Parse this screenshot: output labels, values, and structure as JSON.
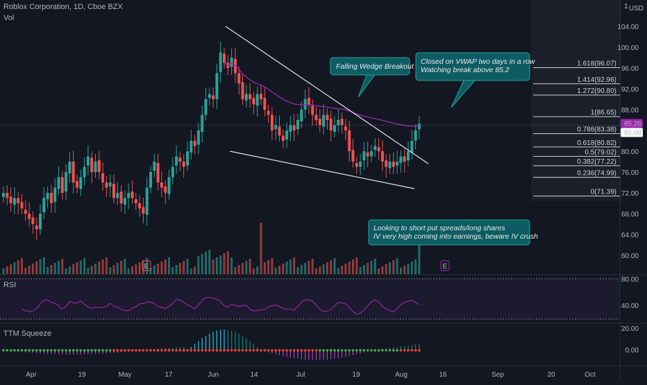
{
  "header": {
    "symbol": "Roblox Corporation, 1D, Cboe BZX",
    "volume_label": "Vol",
    "currency": "USD",
    "currency_menu": "1"
  },
  "price_axis": {
    "ticks": [
      "104.00",
      "100.00",
      "96.00",
      "92.00",
      "88.00",
      "84.00",
      "80.00",
      "76.00",
      "72.00",
      "68.00",
      "64.00",
      "60.00"
    ],
    "badge_last": "85.26",
    "badge_prev": "85.08"
  },
  "rsi": {
    "label": "RSI",
    "ticks": [
      "80.00",
      "40.00"
    ]
  },
  "ttm": {
    "label": "TTM Squeeze",
    "ticks": [
      "20.00",
      "0.00"
    ]
  },
  "time_axis": [
    "Apr",
    "19",
    "May",
    "17",
    "Jun",
    "14",
    "Jul",
    "19",
    "Aug",
    "16",
    "Sep",
    "20",
    "Oct"
  ],
  "earnings_markers": [
    "E",
    "E"
  ],
  "annotations": {
    "wedge": "Falling Wedge Breakout",
    "vwap_line1": "Closed on VWAP two days in a row",
    "vwap_line2": "Watching break above 85.2",
    "plan_line1": "Looking to short put spreads/long shares",
    "plan_line2": "IV very high coming into earnings, beware IV crush"
  },
  "fib_levels": [
    {
      "ratio": "1.618",
      "price": "96.07",
      "label": "1.618(96.07)"
    },
    {
      "ratio": "1.414",
      "price": "92.96",
      "label": "1.414(92.96)"
    },
    {
      "ratio": "1.272",
      "price": "90.80",
      "label": "1.272(90.80)"
    },
    {
      "ratio": "1",
      "price": "86.65",
      "label": "1(86.65)"
    },
    {
      "ratio": "0.786",
      "price": "83.38",
      "label": "0.786(83.38)"
    },
    {
      "ratio": "0.618",
      "price": "80.82",
      "label": "0.618(80.82)"
    },
    {
      "ratio": "0.5",
      "price": "79.02",
      "label": "0.5(79.02)"
    },
    {
      "ratio": "0.382",
      "price": "77.22",
      "label": "0.382(77.22)"
    },
    {
      "ratio": "0.236",
      "price": "74.99",
      "label": "0.236(74.99)"
    },
    {
      "ratio": "0",
      "price": "71.39",
      "label": "0(71.39)"
    }
  ],
  "chart_data": {
    "type": "candlestick",
    "title": "Roblox Corporation, 1D, Cboe BZX",
    "ylim": [
      58,
      106
    ],
    "up_color": "#26a69a",
    "down_color": "#ef5350",
    "vwap_color": "#9c27b0",
    "closes": [
      72,
      71,
      70,
      71,
      70,
      69,
      68,
      67,
      66,
      65,
      68,
      71,
      72,
      70,
      73,
      75,
      72,
      76,
      78,
      74,
      73,
      75,
      77,
      79,
      76,
      78,
      76,
      74,
      73,
      74,
      71,
      72,
      70,
      71,
      72,
      71,
      70,
      69,
      68,
      73,
      76,
      78,
      74,
      73,
      72,
      75,
      77,
      79,
      78,
      77,
      80,
      82,
      81,
      84,
      87,
      90,
      91,
      90,
      95,
      99,
      97,
      96,
      98,
      95,
      93,
      90,
      91,
      90,
      89,
      91,
      90,
      88,
      87,
      84,
      85,
      83,
      82,
      84,
      85,
      84,
      86,
      88,
      90,
      89,
      87,
      86,
      85,
      87,
      86,
      84,
      85,
      86,
      85,
      84,
      80,
      78,
      77,
      78,
      80,
      79,
      80,
      81,
      80,
      78,
      77,
      78,
      77,
      78,
      79,
      78,
      80,
      82,
      84,
      85.3
    ]
  }
}
